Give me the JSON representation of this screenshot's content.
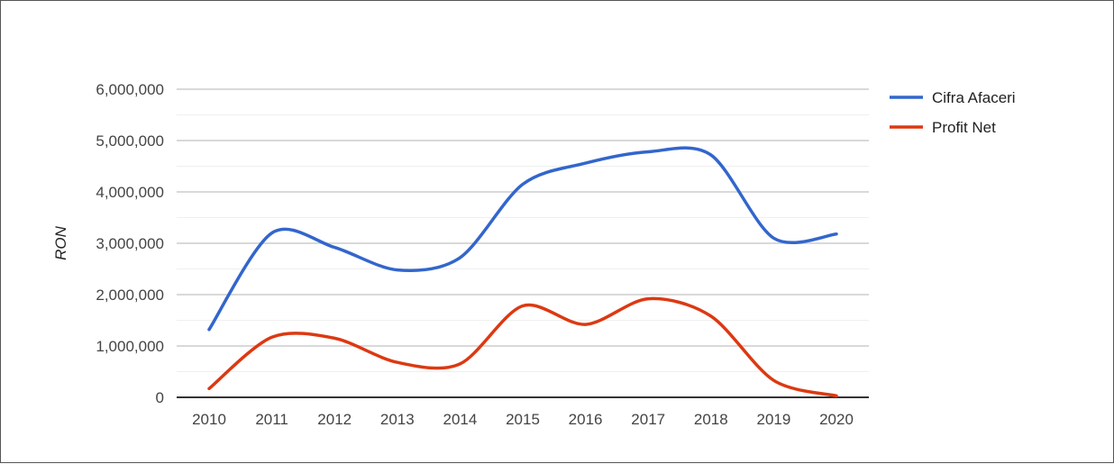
{
  "chart_data": {
    "type": "line",
    "x": [
      "2010",
      "2011",
      "2012",
      "2013",
      "2014",
      "2015",
      "2016",
      "2017",
      "2018",
      "2019",
      "2020"
    ],
    "series": [
      {
        "name": "Cifra Afaceri",
        "color": "#3366cc",
        "values": [
          1320000,
          3200000,
          2920000,
          2480000,
          2720000,
          4150000,
          4560000,
          4780000,
          4720000,
          3100000,
          3180000
        ]
      },
      {
        "name": "Profit Net",
        "color": "#dc3912",
        "values": [
          170000,
          1170000,
          1150000,
          680000,
          650000,
          1780000,
          1420000,
          1920000,
          1580000,
          330000,
          30000
        ]
      }
    ],
    "title": "",
    "xlabel": "",
    "ylabel": "RON",
    "ylim": [
      0,
      6000000
    ],
    "yticks": [
      0,
      1000000,
      2000000,
      3000000,
      4000000,
      5000000,
      6000000
    ],
    "ytick_labels": [
      "0",
      "1,000,000",
      "2,000,000",
      "3,000,000",
      "4,000,000",
      "5,000,000",
      "6,000,000"
    ],
    "grid": true,
    "legend": "right"
  }
}
